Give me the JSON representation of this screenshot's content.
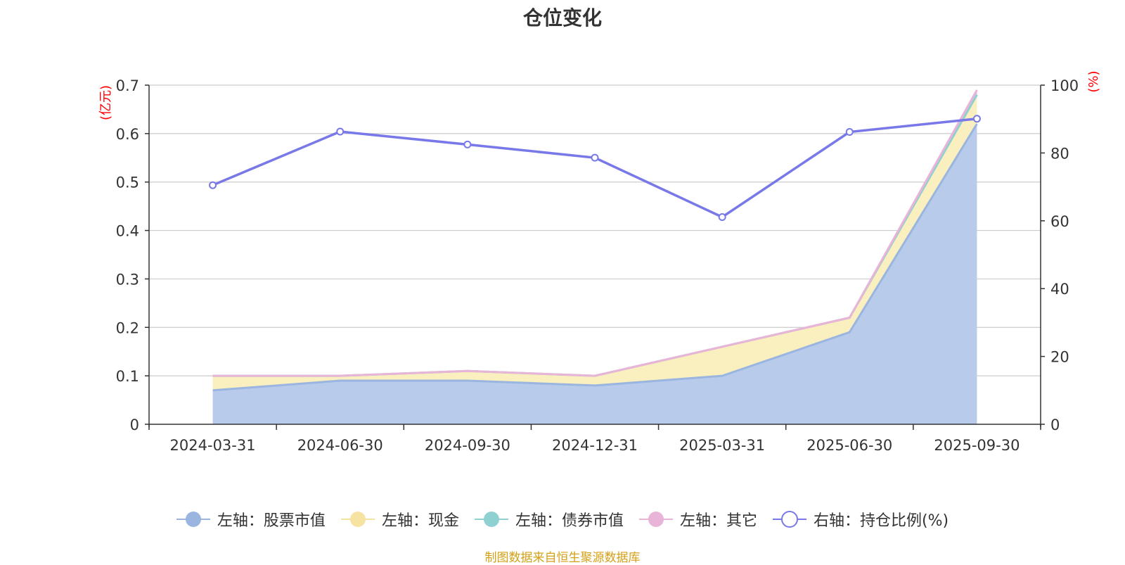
{
  "chart_data": {
    "type": "area",
    "title": "仓位变化",
    "categories": [
      "2024-03-31",
      "2024-06-30",
      "2024-09-30",
      "2024-12-31",
      "2025-03-31",
      "2025-06-30",
      "2025-09-30"
    ],
    "left_axis": {
      "unit": "(亿元)",
      "ylim": [
        0,
        0.7
      ],
      "ticks": [
        "0",
        "0.1",
        "0.2",
        "0.3",
        "0.4",
        "0.5",
        "0.6",
        "0.7"
      ]
    },
    "right_axis": {
      "unit": "(%)",
      "ylim": [
        0,
        100
      ],
      "ticks": [
        "0",
        "20",
        "40",
        "60",
        "80",
        "100"
      ]
    },
    "series": [
      {
        "name": "左轴：股票市值",
        "axis": "left",
        "stack": true,
        "color": "#9ab6e0",
        "fill": "#b8cbea",
        "values": [
          0.07,
          0.09,
          0.09,
          0.08,
          0.1,
          0.19,
          0.62
        ]
      },
      {
        "name": "左轴：现金",
        "axis": "left",
        "stack": true,
        "color": "#f6e3a1",
        "fill": "#faefbe",
        "values": [
          0.03,
          0.01,
          0.02,
          0.02,
          0.06,
          0.03,
          0.06
        ]
      },
      {
        "name": "左轴：债券市值",
        "axis": "left",
        "stack": true,
        "color": "#8fd0d2",
        "fill": "#8fd0d2",
        "values": [
          0,
          0,
          0,
          0,
          0,
          0,
          0
        ]
      },
      {
        "name": "左轴：其它",
        "axis": "left",
        "stack": true,
        "color": "#e8b4d8",
        "fill": "#e8b4d8",
        "values": [
          0.0,
          0.0,
          0.0,
          0.0,
          0.0,
          0.0,
          0.01
        ]
      },
      {
        "name": "右轴：持仓比例(%)",
        "axis": "right",
        "stack": false,
        "color": "#7878e8",
        "values": [
          70.5,
          86.3,
          82.5,
          78.6,
          61.1,
          86.2,
          90.1
        ]
      }
    ]
  },
  "source_note": "制图数据来自恒生聚源数据库"
}
